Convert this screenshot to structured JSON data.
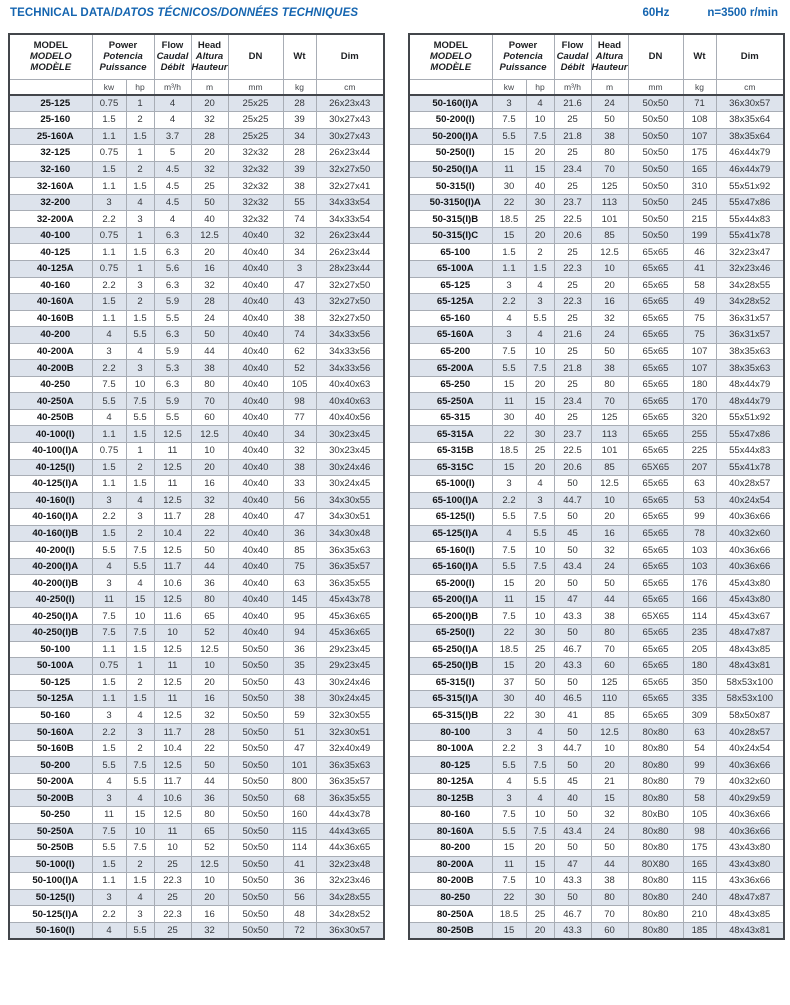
{
  "page": {
    "title_plain": "TECHNICAL DATA/",
    "title_italic": "DATOS TÉCNICOS/DONNÉES TECHNIQUES",
    "frequency": "60Hz",
    "speed": "n=3500 r/min"
  },
  "colors": {
    "accent_blue": "#1565b0",
    "row_stripe": "#dde3ec",
    "border_dark": "#43464b",
    "border_light": "#a8adb5"
  },
  "header": {
    "model_labels": [
      "MODEL",
      "MODELO",
      "MODÈLE"
    ],
    "power_labels": [
      "Power",
      "Potencia",
      "Puissance"
    ],
    "flow_labels": [
      "Flow",
      "Caudal",
      "Débit"
    ],
    "head_labels": [
      "Head",
      "Altura",
      "Hauteur"
    ],
    "dn_label": "DN",
    "wt_label": "Wt",
    "dim_label": "Dim",
    "units": {
      "kw": "kw",
      "hp": "hp",
      "flow": "m³/h",
      "head": "m",
      "dn": "mm",
      "wt": "kg",
      "dim": "cm"
    }
  },
  "left_table": {
    "rows": [
      [
        "25-125",
        "0.75",
        "1",
        "4",
        "20",
        "25x25",
        "28",
        "26x23x43"
      ],
      [
        "25-160",
        "1.5",
        "2",
        "4",
        "32",
        "25x25",
        "39",
        "30x27x43"
      ],
      [
        "25-160A",
        "1.1",
        "1.5",
        "3.7",
        "28",
        "25x25",
        "34",
        "30x27x43"
      ],
      [
        "32-125",
        "0.75",
        "1",
        "5",
        "20",
        "32x32",
        "28",
        "26x23x44"
      ],
      [
        "32-160",
        "1.5",
        "2",
        "4.5",
        "32",
        "32x32",
        "39",
        "32x27x50"
      ],
      [
        "32-160A",
        "1.1",
        "1.5",
        "4.5",
        "25",
        "32x32",
        "38",
        "32x27x41"
      ],
      [
        "32-200",
        "3",
        "4",
        "4.5",
        "50",
        "32x32",
        "55",
        "34x33x54"
      ],
      [
        "32-200A",
        "2.2",
        "3",
        "4",
        "40",
        "32x32",
        "74",
        "34x33x54"
      ],
      [
        "40-100",
        "0.75",
        "1",
        "6.3",
        "12.5",
        "40x40",
        "32",
        "26x23x44"
      ],
      [
        "40-125",
        "1.1",
        "1.5",
        "6.3",
        "20",
        "40x40",
        "34",
        "26x23x44"
      ],
      [
        "40-125A",
        "0.75",
        "1",
        "5.6",
        "16",
        "40x40",
        "3",
        "28x23x44"
      ],
      [
        "40-160",
        "2.2",
        "3",
        "6.3",
        "32",
        "40x40",
        "47",
        "32x27x50"
      ],
      [
        "40-160A",
        "1.5",
        "2",
        "5.9",
        "28",
        "40x40",
        "43",
        "32x27x50"
      ],
      [
        "40-160B",
        "1.1",
        "1.5",
        "5.5",
        "24",
        "40x40",
        "38",
        "32x27x50"
      ],
      [
        "40-200",
        "4",
        "5.5",
        "6.3",
        "50",
        "40x40",
        "74",
        "34x33x56"
      ],
      [
        "40-200A",
        "3",
        "4",
        "5.9",
        "44",
        "40x40",
        "62",
        "34x33x56"
      ],
      [
        "40-200B",
        "2.2",
        "3",
        "5.3",
        "38",
        "40x40",
        "52",
        "34x33x56"
      ],
      [
        "40-250",
        "7.5",
        "10",
        "6.3",
        "80",
        "40x40",
        "105",
        "40x40x63"
      ],
      [
        "40-250A",
        "5.5",
        "7.5",
        "5.9",
        "70",
        "40x40",
        "98",
        "40x40x63"
      ],
      [
        "40-250B",
        "4",
        "5.5",
        "5.5",
        "60",
        "40x40",
        "77",
        "40x40x56"
      ],
      [
        "40-100(I)",
        "1.1",
        "1.5",
        "12.5",
        "12.5",
        "40x40",
        "34",
        "30x23x45"
      ],
      [
        "40-100(I)A",
        "0.75",
        "1",
        "11",
        "10",
        "40x40",
        "32",
        "30x23x45"
      ],
      [
        "40-125(I)",
        "1.5",
        "2",
        "12.5",
        "20",
        "40x40",
        "38",
        "30x24x46"
      ],
      [
        "40-125(I)A",
        "1.1",
        "1.5",
        "11",
        "16",
        "40x40",
        "33",
        "30x24x45"
      ],
      [
        "40-160(I)",
        "3",
        "4",
        "12.5",
        "32",
        "40x40",
        "56",
        "34x30x55"
      ],
      [
        "40-160(I)A",
        "2.2",
        "3",
        "11.7",
        "28",
        "40x40",
        "47",
        "34x30x51"
      ],
      [
        "40-160(I)B",
        "1.5",
        "2",
        "10.4",
        "22",
        "40x40",
        "36",
        "34x30x48"
      ],
      [
        "40-200(I)",
        "5.5",
        "7.5",
        "12.5",
        "50",
        "40x40",
        "85",
        "36x35x63"
      ],
      [
        "40-200(I)A",
        "4",
        "5.5",
        "11.7",
        "44",
        "40x40",
        "75",
        "36x35x57"
      ],
      [
        "40-200(I)B",
        "3",
        "4",
        "10.6",
        "36",
        "40x40",
        "63",
        "36x35x55"
      ],
      [
        "40-250(I)",
        "11",
        "15",
        "12.5",
        "80",
        "40x40",
        "145",
        "45x43x78"
      ],
      [
        "40-250(I)A",
        "7.5",
        "10",
        "11.6",
        "65",
        "40x40",
        "95",
        "45x36x65"
      ],
      [
        "40-250(I)B",
        "7.5",
        "7.5",
        "10",
        "52",
        "40x40",
        "94",
        "45x36x65"
      ],
      [
        "50-100",
        "1.1",
        "1.5",
        "12.5",
        "12.5",
        "50x50",
        "36",
        "29x23x45"
      ],
      [
        "50-100A",
        "0.75",
        "1",
        "11",
        "10",
        "50x50",
        "35",
        "29x23x45"
      ],
      [
        "50-125",
        "1.5",
        "2",
        "12.5",
        "20",
        "50x50",
        "43",
        "30x24x46"
      ],
      [
        "50-125A",
        "1.1",
        "1.5",
        "11",
        "16",
        "50x50",
        "38",
        "30x24x45"
      ],
      [
        "50-160",
        "3",
        "4",
        "12.5",
        "32",
        "50x50",
        "59",
        "32x30x55"
      ],
      [
        "50-160A",
        "2.2",
        "3",
        "11.7",
        "28",
        "50x50",
        "51",
        "32x30x51"
      ],
      [
        "50-160B",
        "1.5",
        "2",
        "10.4",
        "22",
        "50x50",
        "47",
        "32x40x49"
      ],
      [
        "50-200",
        "5.5",
        "7.5",
        "12.5",
        "50",
        "50x50",
        "101",
        "36x35x63"
      ],
      [
        "50-200A",
        "4",
        "5.5",
        "11.7",
        "44",
        "50x50",
        "800",
        "36x35x57"
      ],
      [
        "50-200B",
        "3",
        "4",
        "10.6",
        "36",
        "50x50",
        "68",
        "36x35x55"
      ],
      [
        "50-250",
        "11",
        "15",
        "12.5",
        "80",
        "50x50",
        "160",
        "44x43x78"
      ],
      [
        "50-250A",
        "7.5",
        "10",
        "11",
        "65",
        "50x50",
        "115",
        "44x43x65"
      ],
      [
        "50-250B",
        "5.5",
        "7.5",
        "10",
        "52",
        "50x50",
        "114",
        "44x36x65"
      ],
      [
        "50-100(I)",
        "1.5",
        "2",
        "25",
        "12.5",
        "50x50",
        "41",
        "32x23x48"
      ],
      [
        "50-100(I)A",
        "1.1",
        "1.5",
        "22.3",
        "10",
        "50x50",
        "36",
        "32x23x46"
      ],
      [
        "50-125(I)",
        "3",
        "4",
        "25",
        "20",
        "50x50",
        "56",
        "34x28x55"
      ],
      [
        "50-125(I)A",
        "2.2",
        "3",
        "22.3",
        "16",
        "50x50",
        "48",
        "34x28x52"
      ],
      [
        "50-160(I)",
        "4",
        "5.5",
        "25",
        "32",
        "50x50",
        "72",
        "36x30x57"
      ]
    ]
  },
  "right_table": {
    "rows": [
      [
        "50-160(I)A",
        "3",
        "4",
        "21.6",
        "24",
        "50x50",
        "71",
        "36x30x57"
      ],
      [
        "50-200(I)",
        "7.5",
        "10",
        "25",
        "50",
        "50x50",
        "108",
        "38x35x64"
      ],
      [
        "50-200(I)A",
        "5.5",
        "7.5",
        "21.8",
        "38",
        "50x50",
        "107",
        "38x35x64"
      ],
      [
        "50-250(I)",
        "15",
        "20",
        "25",
        "80",
        "50x50",
        "175",
        "46x44x79"
      ],
      [
        "50-250(I)A",
        "11",
        "15",
        "23.4",
        "70",
        "50x50",
        "165",
        "46x44x79"
      ],
      [
        "50-315(I)",
        "30",
        "40",
        "25",
        "125",
        "50x50",
        "310",
        "55x51x92"
      ],
      [
        "50-3150(I)A",
        "22",
        "30",
        "23.7",
        "113",
        "50x50",
        "245",
        "55x47x86"
      ],
      [
        "50-315(I)B",
        "18.5",
        "25",
        "22.5",
        "101",
        "50x50",
        "215",
        "55x44x83"
      ],
      [
        "50-315(I)C",
        "15",
        "20",
        "20.6",
        "85",
        "50x50",
        "199",
        "55x41x78"
      ],
      [
        "65-100",
        "1.5",
        "2",
        "25",
        "12.5",
        "65x65",
        "46",
        "32x23x47"
      ],
      [
        "65-100A",
        "1.1",
        "1.5",
        "22.3",
        "10",
        "65x65",
        "41",
        "32x23x46"
      ],
      [
        "65-125",
        "3",
        "4",
        "25",
        "20",
        "65x65",
        "58",
        "34x28x55"
      ],
      [
        "65-125A",
        "2.2",
        "3",
        "22.3",
        "16",
        "65x65",
        "49",
        "34x28x52"
      ],
      [
        "65-160",
        "4",
        "5.5",
        "25",
        "32",
        "65x65",
        "75",
        "36x31x57"
      ],
      [
        "65-160A",
        "3",
        "4",
        "21.6",
        "24",
        "65x65",
        "75",
        "36x31x57"
      ],
      [
        "65-200",
        "7.5",
        "10",
        "25",
        "50",
        "65x65",
        "107",
        "38x35x63"
      ],
      [
        "65-200A",
        "5.5",
        "7.5",
        "21.8",
        "38",
        "65x65",
        "107",
        "38x35x63"
      ],
      [
        "65-250",
        "15",
        "20",
        "25",
        "80",
        "65x65",
        "180",
        "48x44x79"
      ],
      [
        "65-250A",
        "11",
        "15",
        "23.4",
        "70",
        "65x65",
        "170",
        "48x44x79"
      ],
      [
        "65-315",
        "30",
        "40",
        "25",
        "125",
        "65x65",
        "320",
        "55x51x92"
      ],
      [
        "65-315A",
        "22",
        "30",
        "23.7",
        "113",
        "65x65",
        "255",
        "55x47x86"
      ],
      [
        "65-315B",
        "18.5",
        "25",
        "22.5",
        "101",
        "65x65",
        "225",
        "55x44x83"
      ],
      [
        "65-315C",
        "15",
        "20",
        "20.6",
        "85",
        "65X65",
        "207",
        "55x41x78"
      ],
      [
        "65-100(I)",
        "3",
        "4",
        "50",
        "12.5",
        "65x65",
        "63",
        "40x28x57"
      ],
      [
        "65-100(I)A",
        "2.2",
        "3",
        "44.7",
        "10",
        "65x65",
        "53",
        "40x24x54"
      ],
      [
        "65-125(I)",
        "5.5",
        "7.5",
        "50",
        "20",
        "65x65",
        "99",
        "40x36x66"
      ],
      [
        "65-125(I)A",
        "4",
        "5.5",
        "45",
        "16",
        "65x65",
        "78",
        "40x32x60"
      ],
      [
        "65-160(I)",
        "7.5",
        "10",
        "50",
        "32",
        "65x65",
        "103",
        "40x36x66"
      ],
      [
        "65-160(I)A",
        "5.5",
        "7.5",
        "43.4",
        "24",
        "65x65",
        "103",
        "40x36x66"
      ],
      [
        "65-200(I)",
        "15",
        "20",
        "50",
        "50",
        "65x65",
        "176",
        "45x43x80"
      ],
      [
        "65-200(I)A",
        "11",
        "15",
        "47",
        "44",
        "65x65",
        "166",
        "45x43x80"
      ],
      [
        "65-200(I)B",
        "7.5",
        "10",
        "43.3",
        "38",
        "65X65",
        "114",
        "45x43x67"
      ],
      [
        "65-250(I)",
        "22",
        "30",
        "50",
        "80",
        "65x65",
        "235",
        "48x47x87"
      ],
      [
        "65-250(I)A",
        "18.5",
        "25",
        "46.7",
        "70",
        "65x65",
        "205",
        "48x43x85"
      ],
      [
        "65-250(I)B",
        "15",
        "20",
        "43.3",
        "60",
        "65x65",
        "180",
        "48x43x81"
      ],
      [
        "65-315(I)",
        "37",
        "50",
        "50",
        "125",
        "65x65",
        "350",
        "58x53x100"
      ],
      [
        "65-315(I)A",
        "30",
        "40",
        "46.5",
        "110",
        "65x65",
        "335",
        "58x53x100"
      ],
      [
        "65-315(I)B",
        "22",
        "30",
        "41",
        "85",
        "65x65",
        "309",
        "58x50x87"
      ],
      [
        "80-100",
        "3",
        "4",
        "50",
        "12.5",
        "80x80",
        "63",
        "40x28x57"
      ],
      [
        "80-100A",
        "2.2",
        "3",
        "44.7",
        "10",
        "80x80",
        "54",
        "40x24x54"
      ],
      [
        "80-125",
        "5.5",
        "7.5",
        "50",
        "20",
        "80x80",
        "99",
        "40x36x66"
      ],
      [
        "80-125A",
        "4",
        "5.5",
        "45",
        "21",
        "80x80",
        "79",
        "40x32x60"
      ],
      [
        "80-125B",
        "3",
        "4",
        "40",
        "15",
        "80x80",
        "58",
        "40x29x59"
      ],
      [
        "80-160",
        "7.5",
        "10",
        "50",
        "32",
        "80xB0",
        "105",
        "40x36x66"
      ],
      [
        "80-160A",
        "5.5",
        "7.5",
        "43.4",
        "24",
        "80x80",
        "98",
        "40x36x66"
      ],
      [
        "80-200",
        "15",
        "20",
        "50",
        "50",
        "80x80",
        "175",
        "43x43x80"
      ],
      [
        "80-200A",
        "11",
        "15",
        "47",
        "44",
        "80X80",
        "165",
        "43x43x80"
      ],
      [
        "80-200B",
        "7.5",
        "10",
        "43.3",
        "38",
        "80x80",
        "115",
        "43x36x66"
      ],
      [
        "80-250",
        "22",
        "30",
        "50",
        "80",
        "80x80",
        "240",
        "48x47x87"
      ],
      [
        "80-250A",
        "18.5",
        "25",
        "46.7",
        "70",
        "80x80",
        "210",
        "48x43x85"
      ],
      [
        "80-250B",
        "15",
        "20",
        "43.3",
        "60",
        "80x80",
        "185",
        "48x43x81"
      ]
    ]
  }
}
